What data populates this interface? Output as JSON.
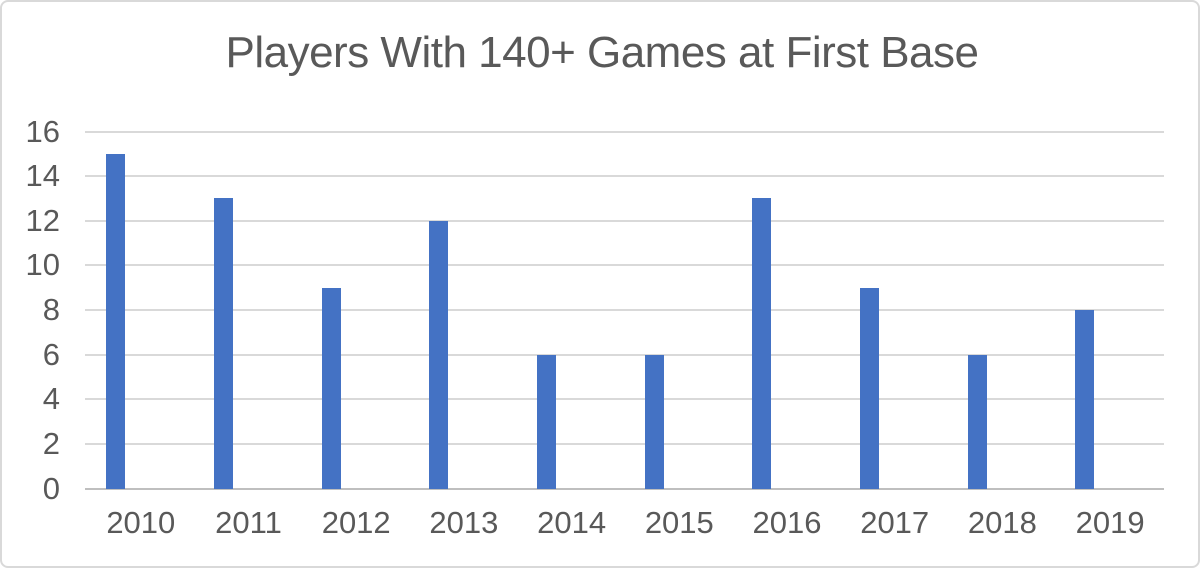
{
  "chart_data": {
    "type": "bar",
    "title": "Players With 140+ Games at First Base",
    "categories": [
      "2010",
      "2011",
      "2012",
      "2013",
      "2014",
      "2015",
      "2016",
      "2017",
      "2018",
      "2019"
    ],
    "values": [
      15,
      13,
      9,
      12,
      6,
      6,
      13,
      9,
      6,
      8
    ],
    "xlabel": "",
    "ylabel": "",
    "ylim": [
      0,
      16
    ],
    "y_ticks": [
      0,
      2,
      4,
      6,
      8,
      10,
      12,
      14,
      16
    ],
    "grid": "horizontal",
    "legend_position": "none",
    "colors": {
      "bar": "#4472c4",
      "gridline": "#d9d9d9",
      "axis_line": "#bfbfbf",
      "text": "#595959",
      "background": "#ffffff",
      "border": "#d9d9d9"
    }
  }
}
